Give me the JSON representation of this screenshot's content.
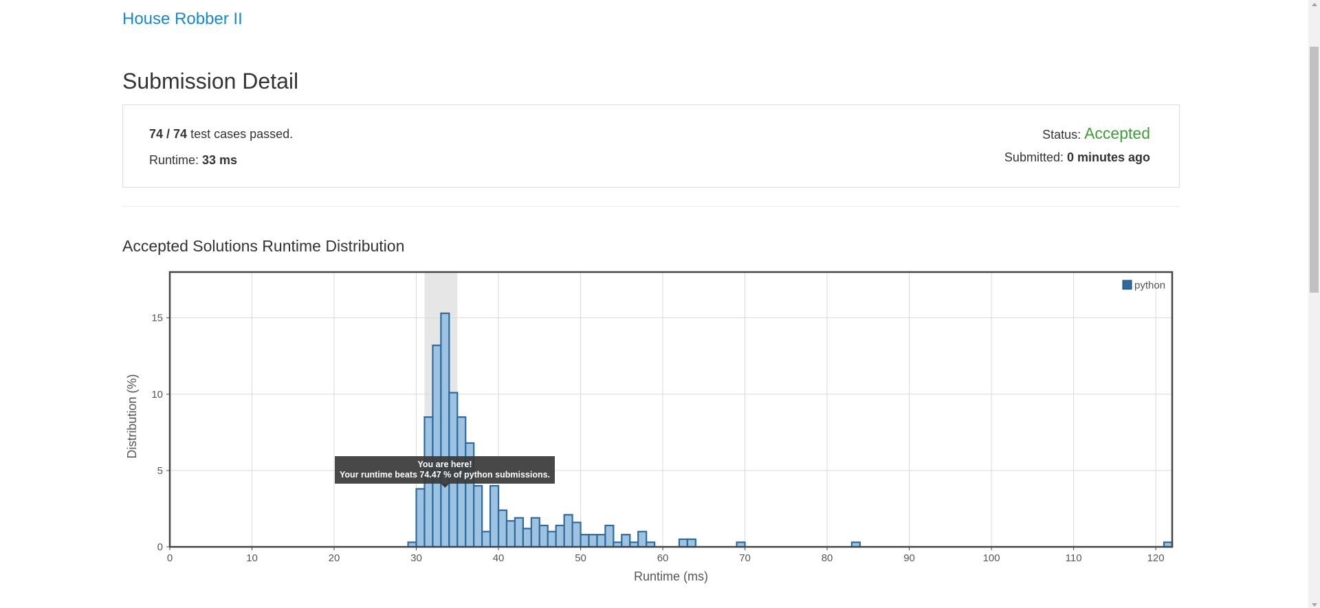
{
  "problem": {
    "title": "House Robber II"
  },
  "page_title": "Submission Detail",
  "detail": {
    "cases_passed": "74",
    "cases_sep": " / ",
    "cases_total": "74",
    "cases_suffix": " test cases passed.",
    "runtime_label": "Runtime: ",
    "runtime_value": "33 ms",
    "status_label": "Status: ",
    "status_value": "Accepted",
    "submitted_label": "Submitted: ",
    "submitted_value": "0 minutes ago"
  },
  "colors": {
    "status_accepted": "#3d9b38",
    "link": "#1a87c9",
    "bar_fill": "#9ec3e0",
    "bar_stroke": "#2d6a9f",
    "legend_swatch": "#2d6a9f",
    "highlight_band": "#e6e6e6"
  },
  "section_title": "Accepted Solutions Runtime Distribution",
  "tooltip": {
    "line1": "You are here!",
    "line2": "Your runtime beats 74.47 % of python submissions."
  },
  "chart_data": {
    "type": "bar",
    "title": "",
    "xlabel": "Runtime (ms)",
    "ylabel": "Distribution (%)",
    "xlim": [
      0,
      122
    ],
    "ylim": [
      0,
      18
    ],
    "xticks": [
      0,
      10,
      20,
      30,
      40,
      50,
      60,
      70,
      80,
      90,
      100,
      110,
      120
    ],
    "yticks": [
      0,
      5,
      10,
      15
    ],
    "bin_width": 1,
    "grid": true,
    "legend": {
      "position": "top-right",
      "entries": [
        "python"
      ]
    },
    "highlight_range": [
      31,
      35
    ],
    "series": [
      {
        "name": "python",
        "x": [
          29,
          30,
          31,
          32,
          33,
          34,
          35,
          36,
          37,
          38,
          39,
          40,
          41,
          42,
          43,
          44,
          45,
          46,
          47,
          48,
          49,
          50,
          51,
          52,
          53,
          54,
          55,
          56,
          57,
          58,
          59,
          62,
          63,
          69,
          83,
          121
        ],
        "values": [
          0.3,
          3.8,
          8.5,
          13.2,
          15.3,
          10.1,
          8.5,
          6.8,
          4.0,
          1.0,
          4.0,
          2.4,
          1.7,
          1.9,
          1.2,
          1.9,
          1.4,
          1.0,
          1.4,
          2.1,
          1.6,
          0.8,
          0.8,
          0.8,
          1.4,
          0.3,
          0.8,
          0.3,
          1.0,
          0.3,
          0.0,
          0.5,
          0.5,
          0.3,
          0.3,
          0.3
        ]
      }
    ]
  }
}
